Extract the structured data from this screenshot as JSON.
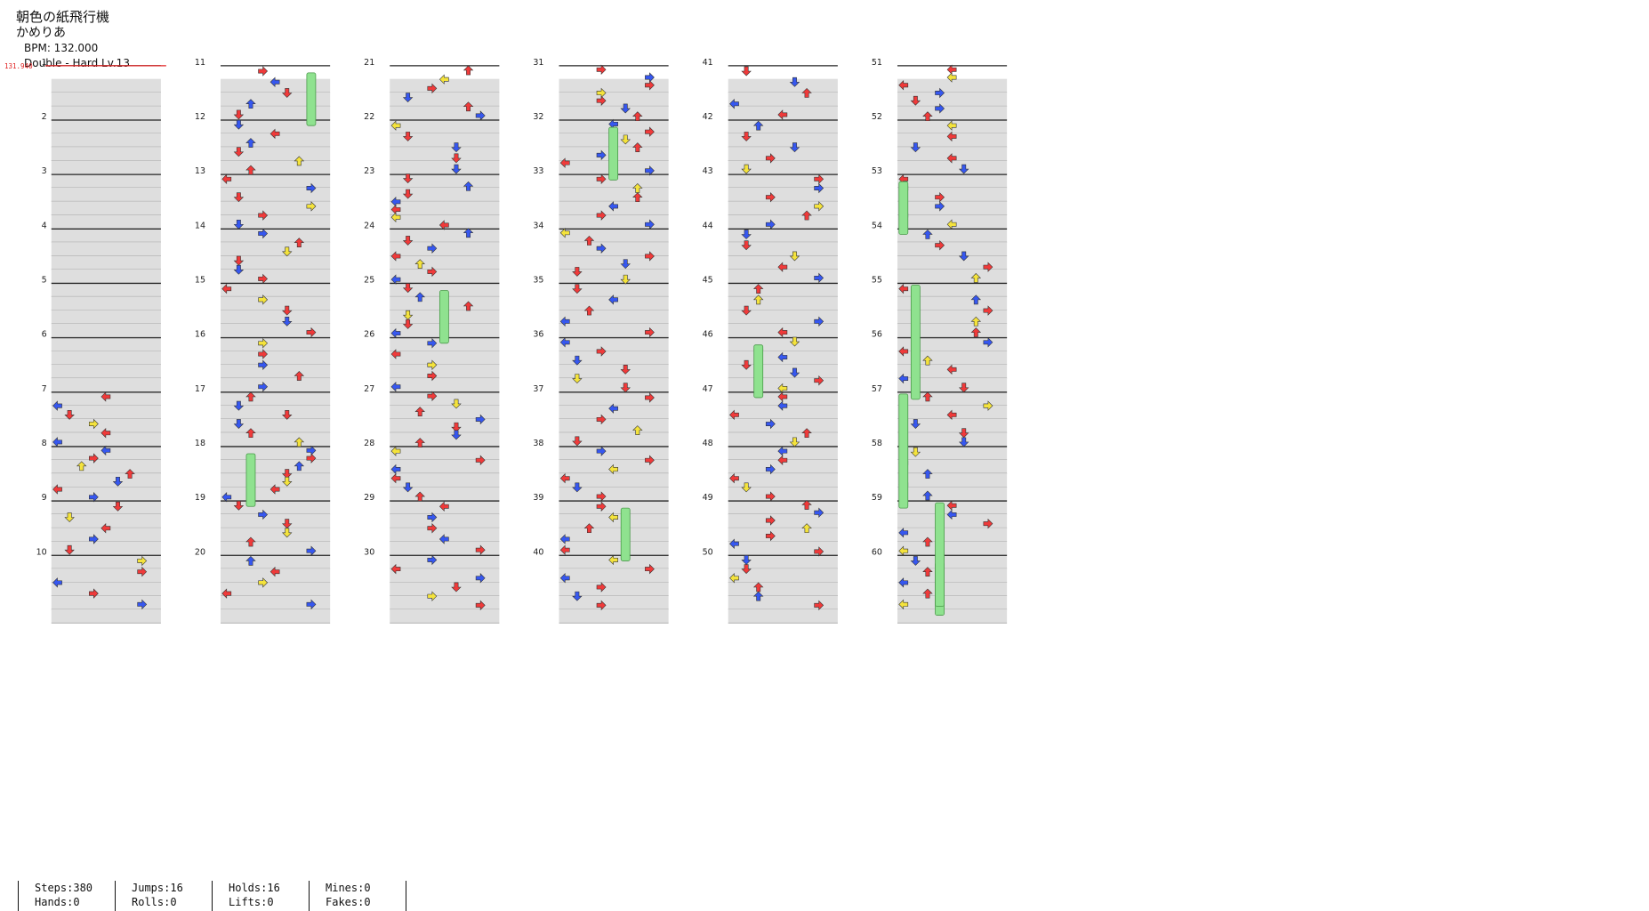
{
  "song": {
    "title": "朝色の紙飛行機",
    "artist": "かめりあ",
    "bpm_text": "BPM: 132.000",
    "difficulty_text": "Double - Hard Lv.13"
  },
  "chart": {
    "bpm_marker": "131.940",
    "measures": [
      "1",
      "2",
      "3",
      "4",
      "5",
      "6",
      "7",
      "8",
      "9",
      "10",
      "11",
      "12",
      "13",
      "14",
      "15",
      "16",
      "17",
      "18",
      "19",
      "20",
      "21",
      "22",
      "23",
      "24",
      "25",
      "26",
      "27",
      "28",
      "29",
      "30",
      "31",
      "32",
      "33",
      "34",
      "35",
      "36",
      "37",
      "38",
      "39",
      "40",
      "41",
      "42",
      "43",
      "44",
      "45",
      "46",
      "47",
      "48",
      "49",
      "50",
      "51",
      "52",
      "53",
      "54",
      "55",
      "56",
      "57",
      "58",
      "59",
      "60"
    ],
    "colors": {
      "red": "#ef3a3a",
      "blue": "#3657ef",
      "yellow": "#f4e33c",
      "hold": "#8fe28f",
      "shade": "#dedede"
    }
  },
  "stats": {
    "steps": "Steps:380",
    "hands": "Hands:0",
    "jumps": "Jumps:16",
    "rolls": "Rolls:0",
    "holds": "Holds:16",
    "lifts": "Lifts:0",
    "mines": "Mines:0",
    "fakes": "Fakes:0"
  }
}
